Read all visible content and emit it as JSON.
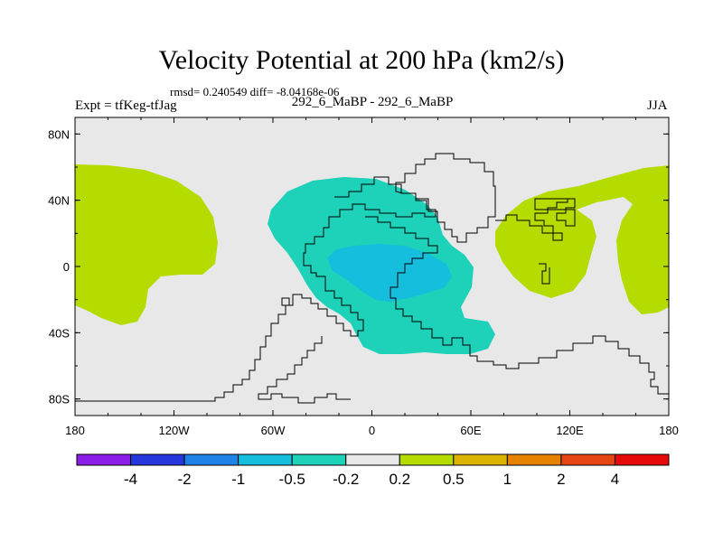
{
  "chart_data": {
    "type": "heatmap",
    "title": "Velocity Potential at 200 hPa (km2/s)",
    "stats_text": "rmsd= 0.240549 diff= -8.04168e-06",
    "left_label": "Expt = tfKeg-tfJag",
    "center_label": "292_6_MaBP - 292_6_MaBP",
    "right_label": "JJA",
    "x_ticks": [
      "180",
      "120W",
      "60W",
      "0",
      "60E",
      "120E",
      "180"
    ],
    "y_ticks": [
      "80N",
      "40N",
      "0",
      "40S",
      "80S"
    ],
    "xlim": [
      -180,
      180
    ],
    "ylim": [
      -90,
      90
    ],
    "grid": false,
    "colorbar": {
      "levels": [
        "-4",
        "-2",
        "-1",
        "-0.5",
        "-0.2",
        "0.2",
        "0.5",
        "1",
        "2",
        "4"
      ],
      "colors": [
        "#8a1ee6",
        "#2638dc",
        "#1e82e6",
        "#14bedc",
        "#1ed2b9",
        "#e8e8e8",
        "#b4dc00",
        "#dcb400",
        "#e68200",
        "#e64614",
        "#e60a0a"
      ]
    },
    "regions": [
      {
        "name": "Africa / Atlantic negative anomaly",
        "level": "-0.5 to -0.2",
        "color": "#1ed2b9",
        "lon_range": [
          -62,
          78
        ],
        "lat_range": [
          -54,
          50
        ]
      },
      {
        "name": "Equatorial Atlantic core",
        "level": "-1 to -0.5",
        "color": "#14bedc",
        "lon_range": [
          -28,
          52
        ],
        "lat_range": [
          -20,
          12
        ]
      },
      {
        "name": "Asia positive anomaly",
        "level": "0.2 to 0.5",
        "color": "#b4dc00",
        "lon_range": [
          78,
          180
        ],
        "lat_range": [
          -30,
          63
        ]
      },
      {
        "name": "Pacific positive anomaly",
        "level": "0.2 to 0.5",
        "color": "#b4dc00",
        "lon_range": [
          -180,
          -90
        ],
        "lat_range": [
          -40,
          62
        ]
      }
    ]
  }
}
